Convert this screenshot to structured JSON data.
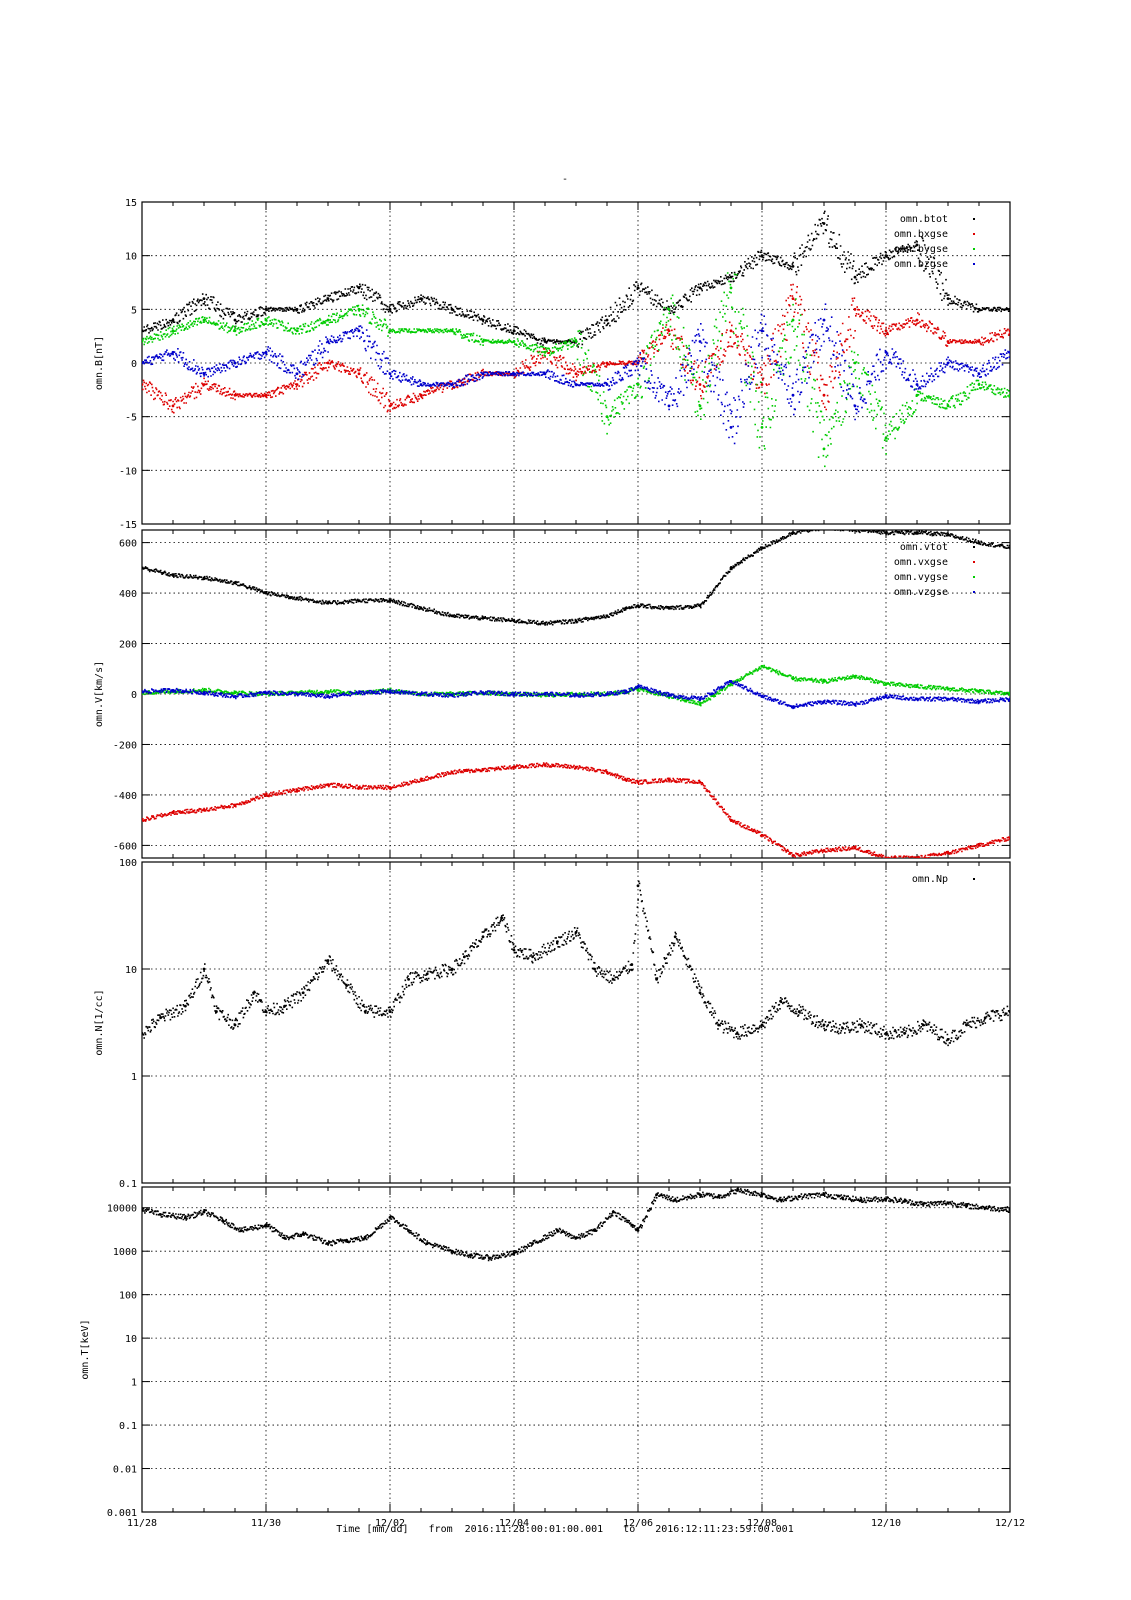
{
  "page_title": "-",
  "footer": {
    "time_label": "Time [mm/dd]",
    "from_label": "from",
    "from_value": "2016:11:28:00:01:00.001",
    "to_label": "to",
    "to_value": "2016:12:11:23:59:00.001"
  },
  "x_axis": {
    "ticks": [
      "11/28",
      "11/30",
      "12/02",
      "12/04",
      "12/06",
      "12/08",
      "12/10",
      "12/12"
    ],
    "range_days": [
      0,
      14
    ]
  },
  "colors": {
    "black": "#000000",
    "red": "#dd0000",
    "green": "#00cc00",
    "blue": "#0000cc"
  },
  "chart_data": [
    {
      "type": "scatter",
      "ylabel": "omn.B[nT]",
      "ylim": [
        -15,
        15
      ],
      "yscale": "linear",
      "yticks": [
        -15,
        -10,
        -5,
        0,
        5,
        10,
        15
      ],
      "grid": true,
      "legend_placement": "top-right",
      "series": [
        {
          "name": "omn.btot",
          "color": "#000000",
          "x": [
            0,
            0.5,
            1,
            1.5,
            2,
            2.5,
            3,
            3.5,
            4,
            4.5,
            5,
            5.5,
            6,
            6.5,
            7,
            7.5,
            8,
            8.5,
            9,
            9.5,
            10,
            10.5,
            11,
            11.5,
            12,
            12.5,
            13,
            13.5,
            14
          ],
          "y": [
            3,
            4,
            6,
            4,
            5,
            5,
            6,
            7,
            5,
            6,
            5,
            4,
            3,
            2,
            2,
            4,
            7,
            5,
            7,
            8,
            10,
            9,
            13,
            8,
            10,
            11,
            6,
            5,
            5
          ]
        },
        {
          "name": "omn.bxgse",
          "color": "#dd0000",
          "x": [
            0,
            0.5,
            1,
            1.5,
            2,
            2.5,
            3,
            3.5,
            4,
            4.5,
            5,
            5.5,
            6,
            6.5,
            7,
            7.5,
            8,
            8.5,
            9,
            9.5,
            10,
            10.5,
            11,
            11.5,
            12,
            12.5,
            13,
            13.5,
            14
          ],
          "y": [
            -2,
            -4,
            -2,
            -3,
            -3,
            -2,
            0,
            -1,
            -4,
            -3,
            -2,
            -1,
            -1,
            1,
            -1,
            0,
            0,
            3,
            -2,
            3,
            -2,
            6,
            -3,
            5,
            3,
            4,
            2,
            2,
            3
          ]
        },
        {
          "name": "omn.bygse",
          "color": "#00cc00",
          "x": [
            0,
            0.5,
            1,
            1.5,
            2,
            2.5,
            3,
            3.5,
            4,
            4.5,
            5,
            5.5,
            6,
            6.5,
            7,
            7.5,
            8,
            8.5,
            9,
            9.5,
            10,
            10.5,
            11,
            11.5,
            12,
            12.5,
            13,
            13.5,
            14
          ],
          "y": [
            2,
            3,
            4,
            3,
            4,
            3,
            4,
            5,
            3,
            3,
            3,
            2,
            2,
            1,
            2,
            -5,
            -2,
            5,
            -4,
            7,
            -6,
            4,
            -8,
            0,
            -7,
            -3,
            -4,
            -2,
            -3
          ]
        },
        {
          "name": "omn.bzgse",
          "color": "#0000cc",
          "x": [
            0,
            0.5,
            1,
            1.5,
            2,
            2.5,
            3,
            3.5,
            4,
            4.5,
            5,
            5.5,
            6,
            6.5,
            7,
            7.5,
            8,
            8.5,
            9,
            9.5,
            10,
            10.5,
            11,
            11.5,
            12,
            12.5,
            13,
            13.5,
            14
          ],
          "y": [
            0,
            1,
            -1,
            0,
            1,
            -1,
            2,
            3,
            -1,
            -2,
            -2,
            -1,
            -1,
            -1,
            -2,
            -2,
            0,
            -4,
            2,
            -6,
            3,
            -3,
            4,
            -4,
            1,
            -2,
            0,
            -1,
            1
          ]
        }
      ]
    },
    {
      "type": "scatter",
      "ylabel": "omn.V[km/s]",
      "ylim": [
        -650,
        650
      ],
      "yscale": "linear",
      "yticks": [
        -600,
        -400,
        -200,
        0,
        200,
        400,
        600
      ],
      "grid": true,
      "legend_placement": "top-right",
      "series": [
        {
          "name": "omn.vtot",
          "color": "#000000",
          "x": [
            0,
            0.5,
            1,
            1.5,
            2,
            2.5,
            3,
            3.5,
            4,
            4.5,
            5,
            5.5,
            6,
            6.5,
            7,
            7.5,
            7.8,
            8,
            8.5,
            9,
            9.5,
            10,
            10.5,
            11,
            11.5,
            12,
            12.5,
            13,
            13.5,
            14
          ],
          "y": [
            500,
            470,
            460,
            440,
            400,
            380,
            360,
            370,
            370,
            340,
            310,
            300,
            290,
            280,
            290,
            310,
            340,
            350,
            340,
            350,
            500,
            580,
            640,
            660,
            650,
            640,
            640,
            630,
            600,
            580
          ]
        },
        {
          "name": "omn.vxgse",
          "color": "#dd0000",
          "x": [
            0,
            0.5,
            1,
            1.5,
            2,
            2.5,
            3,
            3.5,
            4,
            4.5,
            5,
            5.5,
            6,
            6.5,
            7,
            7.5,
            7.8,
            8,
            8.5,
            9,
            9.5,
            10,
            10.5,
            11,
            11.5,
            12,
            12.5,
            13,
            13.5,
            14
          ],
          "y": [
            -500,
            -470,
            -460,
            -440,
            -400,
            -380,
            -360,
            -370,
            -370,
            -340,
            -310,
            -300,
            -290,
            -280,
            -290,
            -310,
            -340,
            -350,
            -340,
            -350,
            -500,
            -560,
            -640,
            -620,
            -610,
            -650,
            -650,
            -630,
            -600,
            -570
          ]
        },
        {
          "name": "omn.vygse",
          "color": "#00cc00",
          "x": [
            0,
            0.5,
            1,
            1.5,
            2,
            2.5,
            3,
            3.5,
            4,
            4.5,
            5,
            5.5,
            6,
            6.5,
            7,
            7.5,
            7.8,
            8,
            8.5,
            9,
            9.5,
            10,
            10.5,
            11,
            11.5,
            12,
            12.5,
            13,
            13.5,
            14
          ],
          "y": [
            5,
            10,
            15,
            5,
            0,
            5,
            10,
            5,
            15,
            0,
            0,
            5,
            0,
            -5,
            0,
            0,
            10,
            20,
            -10,
            -40,
            40,
            110,
            60,
            50,
            70,
            40,
            30,
            20,
            10,
            0
          ]
        },
        {
          "name": "omn.vzgse",
          "color": "#0000cc",
          "x": [
            0,
            0.5,
            1,
            1.5,
            2,
            2.5,
            3,
            3.5,
            4,
            4.5,
            5,
            5.5,
            6,
            6.5,
            7,
            7.5,
            7.8,
            8,
            8.5,
            9,
            9.5,
            10,
            10.5,
            11,
            11.5,
            12,
            12.5,
            13,
            13.5,
            14
          ],
          "y": [
            10,
            15,
            5,
            -10,
            5,
            0,
            -10,
            5,
            10,
            0,
            -5,
            5,
            0,
            0,
            -5,
            0,
            10,
            30,
            -5,
            -20,
            50,
            -10,
            -50,
            -30,
            -40,
            -10,
            -20,
            -20,
            -30,
            -20
          ]
        }
      ]
    },
    {
      "type": "scatter",
      "ylabel": "omn.N[1/cc]",
      "ylim": [
        0.1,
        100
      ],
      "yscale": "log",
      "yticks": [
        0.1,
        1,
        10,
        100
      ],
      "yticklabels": [
        "0.1",
        "1",
        "10",
        "100"
      ],
      "grid": true,
      "legend_placement": "top-right",
      "series": [
        {
          "name": "omn.Np",
          "color": "#000000",
          "x": [
            0,
            0.3,
            0.7,
            1,
            1.2,
            1.5,
            1.8,
            2,
            2.3,
            2.6,
            3,
            3.3,
            3.6,
            4,
            4.3,
            4.6,
            5,
            5.2,
            5.5,
            5.8,
            6,
            6.3,
            6.7,
            7,
            7.3,
            7.6,
            7.9,
            8,
            8.3,
            8.6,
            9,
            9.3,
            9.6,
            10,
            10.3,
            10.6,
            11,
            11.3,
            11.6,
            12,
            12.3,
            12.6,
            13,
            13.3,
            13.6,
            14
          ],
          "y": [
            2.5,
            3.5,
            4.5,
            10,
            4,
            3,
            6,
            4,
            4.5,
            6,
            12,
            7,
            4,
            4,
            8,
            9,
            10,
            13,
            20,
            30,
            15,
            13,
            18,
            22,
            10,
            8,
            11,
            60,
            8,
            20,
            6,
            3,
            2.5,
            3,
            5,
            4,
            3,
            2.8,
            3,
            2.5,
            2.5,
            3,
            2.2,
            3,
            3.5,
            4
          ]
        }
      ]
    },
    {
      "type": "scatter",
      "ylabel": "omn.T[keV]",
      "ylim": [
        0.001,
        30000
      ],
      "yscale": "log",
      "yticks": [
        0.001,
        0.01,
        0.1,
        1,
        10,
        100,
        1000,
        10000
      ],
      "yticklabels": [
        "0.001",
        "0.01",
        "0.1",
        "1",
        "10",
        "100",
        "1000",
        "10000"
      ],
      "grid": true,
      "legend_placement": "top-right",
      "series": [
        {
          "name": "",
          "color": "#000000",
          "x": [
            0,
            0.3,
            0.7,
            1,
            1.3,
            1.6,
            2,
            2.3,
            2.6,
            3,
            3.3,
            3.6,
            4,
            4.3,
            4.6,
            5,
            5.3,
            5.6,
            6,
            6.3,
            6.7,
            7,
            7.3,
            7.6,
            7.9,
            8,
            8.3,
            8.6,
            9,
            9.3,
            9.6,
            10,
            10.3,
            10.6,
            11,
            11.3,
            11.6,
            12,
            12.3,
            12.6,
            13,
            13.3,
            13.6,
            14
          ],
          "y": [
            9000,
            7000,
            6000,
            8000,
            5000,
            3000,
            4000,
            2000,
            2500,
            1500,
            1800,
            2000,
            6000,
            3000,
            1500,
            1000,
            800,
            700,
            900,
            1500,
            3000,
            2000,
            3000,
            8000,
            4000,
            3000,
            20000,
            15000,
            20000,
            18000,
            25000,
            20000,
            15000,
            18000,
            20000,
            17000,
            15000,
            16000,
            14000,
            12000,
            13000,
            11000,
            10000,
            9000
          ]
        }
      ]
    }
  ]
}
